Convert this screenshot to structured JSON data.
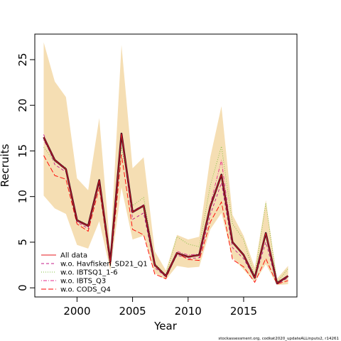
{
  "chart_data": {
    "type": "line",
    "xlabel": "Year",
    "ylabel": "Recruits",
    "xlim": [
      1996.2,
      2019.8
    ],
    "ylim": [
      -1.0,
      27.8
    ],
    "xticks": [
      "2000",
      "2005",
      "2010",
      "2015"
    ],
    "xtick_values": [
      2000,
      2005,
      2010,
      2015
    ],
    "yticks": [
      "0",
      "5",
      "10",
      "15",
      "20",
      "25"
    ],
    "ytick_values": [
      0,
      5,
      10,
      15,
      20,
      25
    ],
    "grid": false,
    "legend_position": "bottom-left",
    "x": [
      1997,
      1998,
      1999,
      2000,
      2001,
      2002,
      2003,
      2004,
      2005,
      2006,
      2007,
      2008,
      2009,
      2010,
      2011,
      2012,
      2013,
      2014,
      2015,
      2016,
      2017,
      2018,
      2019
    ],
    "confidence_band": {
      "color": "#f5deb3",
      "lower": [
        10.1,
        8.7,
        8.1,
        4.7,
        4.3,
        7.3,
        1.9,
        11.0,
        5.3,
        5.7,
        1.6,
        0.9,
        2.4,
        2.2,
        2.3,
        6.4,
        8.2,
        3.3,
        2.0,
        0.6,
        2.6,
        0.3,
        0.4
      ],
      "upper": [
        26.9,
        22.6,
        20.9,
        12.0,
        10.7,
        18.6,
        4.2,
        26.6,
        13.1,
        14.3,
        4.0,
        1.9,
        5.8,
        5.3,
        5.6,
        14.3,
        19.9,
        8.0,
        5.7,
        2.2,
        9.6,
        1.0,
        2.4
      ]
    },
    "series": [
      {
        "name": "All data",
        "color": "#e41a1c",
        "dash": "solid",
        "values": [
          16.5,
          14.0,
          13.0,
          7.4,
          6.8,
          11.8,
          2.9,
          16.9,
          8.3,
          9.0,
          2.5,
          1.3,
          3.8,
          3.4,
          3.6,
          8.9,
          12.4,
          5.0,
          3.6,
          1.1,
          6.0,
          0.5,
          1.3
        ]
      },
      {
        "name": "w.o. Havfisken_SD21_Q1",
        "color": "#c51b8a",
        "dash": "dashed",
        "values": [
          16.8,
          13.5,
          12.7,
          7.2,
          6.5,
          11.6,
          2.6,
          16.6,
          7.5,
          8.2,
          2.2,
          1.2,
          3.6,
          3.2,
          3.3,
          8.0,
          11.5,
          4.4,
          3.2,
          1.0,
          5.0,
          0.4,
          1.1
        ]
      },
      {
        "name": "w.o. IBTSQ1_1-6",
        "color": "#7fbf3f",
        "dash": "dotted",
        "values": [
          15.4,
          13.8,
          13.2,
          7.5,
          6.9,
          12.0,
          2.9,
          15.4,
          9.0,
          9.9,
          2.7,
          1.4,
          5.6,
          4.8,
          4.5,
          11.2,
          15.5,
          7.0,
          5.3,
          1.2,
          9.3,
          0.6,
          2.1
        ]
      },
      {
        "name": "w.o. IBTS_Q3",
        "color": "#e7298a",
        "dash": "dashdot",
        "values": [
          16.2,
          13.9,
          12.9,
          7.3,
          6.7,
          11.8,
          2.8,
          16.4,
          8.4,
          9.1,
          2.5,
          1.3,
          4.0,
          3.6,
          3.7,
          9.1,
          14.0,
          5.0,
          3.7,
          1.1,
          6.1,
          0.5,
          1.3
        ]
      },
      {
        "name": "w.o. CODS_Q4",
        "color": "#ff0000",
        "dash": "longdash",
        "values": [
          14.5,
          12.3,
          11.9,
          7.0,
          6.2,
          11.0,
          2.4,
          14.6,
          6.4,
          5.8,
          1.5,
          1.0,
          3.8,
          3.1,
          3.0,
          7.2,
          9.4,
          3.1,
          2.3,
          0.6,
          3.2,
          0.4,
          0.8
        ]
      }
    ],
    "highlight_line": {
      "color": "#3b0a26"
    },
    "credit": "stockassessment.org, codkat2020_updateALLinputs2, r14261"
  }
}
